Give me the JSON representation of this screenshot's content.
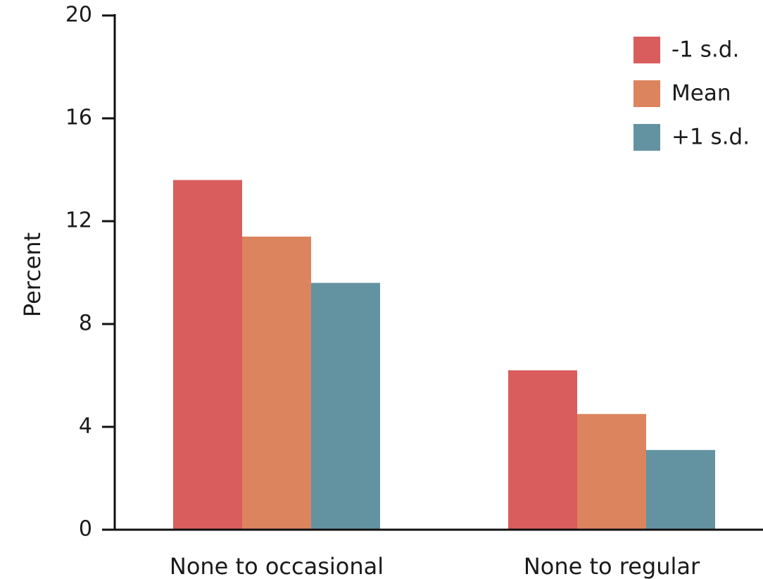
{
  "chart_data": {
    "type": "bar",
    "title": "",
    "xlabel": "",
    "ylabel": "Percent",
    "ylim": [
      0,
      20
    ],
    "yticks": [
      "0",
      "4",
      "8",
      "12",
      "16",
      "20"
    ],
    "categories": [
      "None to occasional",
      "None to regular"
    ],
    "series": [
      {
        "name": "-1 s.d.",
        "color": "#d95d5c",
        "values": [
          13.6,
          6.2
        ]
      },
      {
        "name": "Mean",
        "color": "#db845e",
        "values": [
          11.4,
          4.5
        ]
      },
      {
        "name": "+1 s.d.",
        "color": "#6393a1",
        "values": [
          9.6,
          3.1
        ]
      }
    ],
    "legend": {
      "position": "top-right"
    },
    "grid": false
  }
}
